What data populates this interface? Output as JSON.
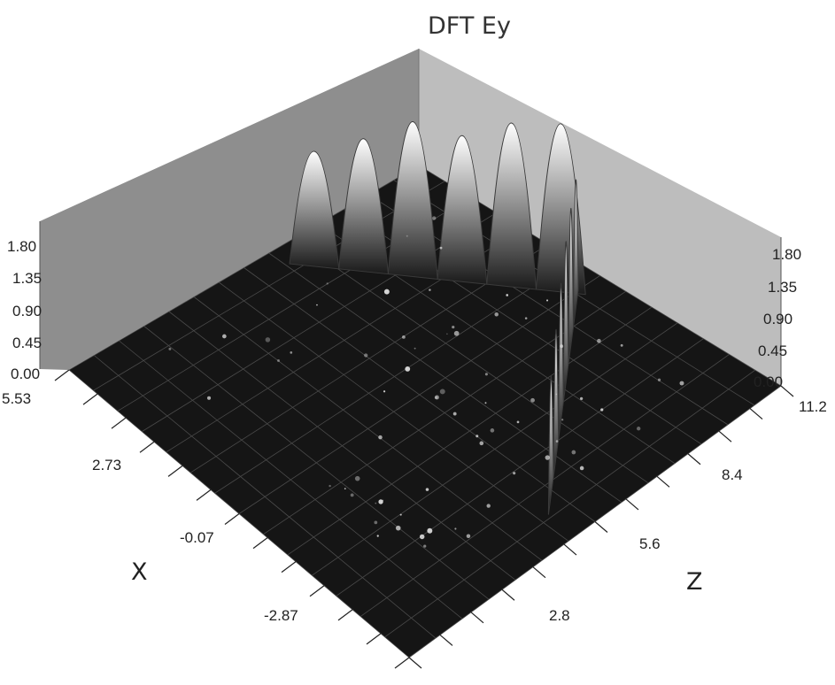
{
  "chart_data": {
    "type": "surface3d",
    "title": "DFT Ey",
    "xlabel": "X",
    "zlabel": "Z",
    "x_ticks": [
      "5.53",
      "2.73",
      "-0.07",
      "-2.87"
    ],
    "z_ticks": [
      "11.2",
      "8.4",
      "5.6",
      "2.8"
    ],
    "value_ticks_left": [
      "1.80",
      "1.35",
      "0.90",
      "0.45",
      "0.00"
    ],
    "value_ticks_right": [
      "1.80",
      "1.35",
      "0.90",
      "0.45",
      "0.00"
    ],
    "value_range": [
      0,
      1.8
    ],
    "grid": true,
    "ridges": {
      "left_arm": [
        1.3,
        1.5,
        1.75,
        1.65,
        1.85,
        1.9
      ],
      "right_arm": [
        1.45,
        1.55,
        1.6,
        1.55,
        1.45,
        1.35
      ]
    },
    "colors": {
      "floor": "#151515",
      "wall_left": "#8e8e8e",
      "wall_right": "#bdbdbd",
      "peak": "#ffffff"
    }
  }
}
